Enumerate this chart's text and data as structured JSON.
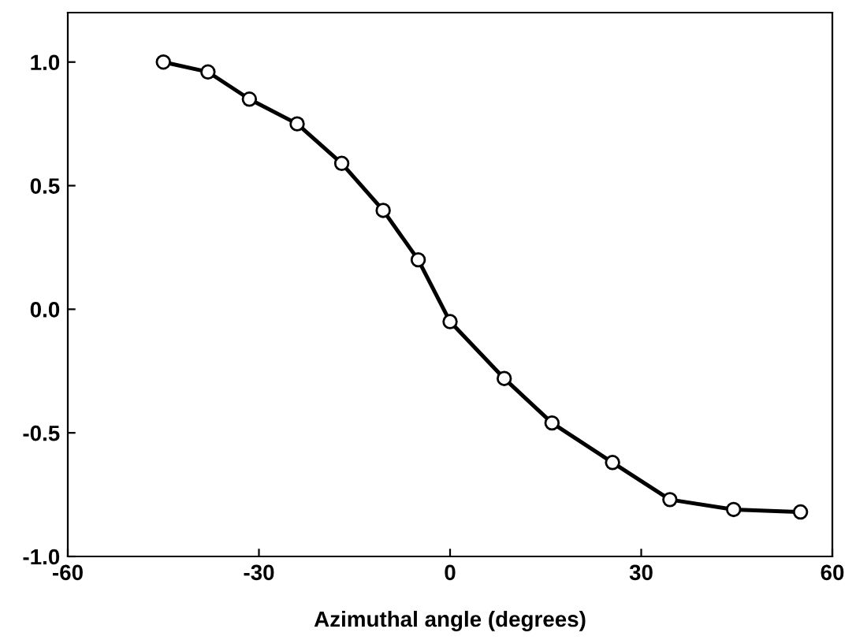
{
  "chart_data": {
    "type": "line",
    "xlabel": "Azimuthal angle (degrees)",
    "x": [
      -45,
      -38,
      -31.5,
      -24,
      -17,
      -10.5,
      -5,
      0,
      8.5,
      16,
      25.5,
      34.5,
      44.5,
      55
    ],
    "series": [
      {
        "color": "#000000",
        "values": [
          1.0,
          0.96,
          0.85,
          0.75,
          0.59,
          0.4,
          0.2,
          -0.05,
          -0.28,
          -0.46,
          -0.62,
          -0.77,
          -0.81,
          -0.82
        ]
      }
    ],
    "xlim": [
      -60,
      60
    ],
    "xticks": [
      -60,
      -30,
      0,
      30,
      60
    ],
    "ylim": [
      -1.0,
      1.2
    ],
    "yticks": [
      {
        "value": -1,
        "label": "-1.0"
      },
      {
        "value": -0.5,
        "label": "-0.5"
      },
      {
        "value": 0,
        "label": "0.0"
      },
      {
        "value": 0.5,
        "label": "0.5"
      },
      {
        "value": 1,
        "label": "1.0"
      }
    ],
    "marker": "circle",
    "line_style": "solid",
    "grid": false,
    "legend": false
  }
}
